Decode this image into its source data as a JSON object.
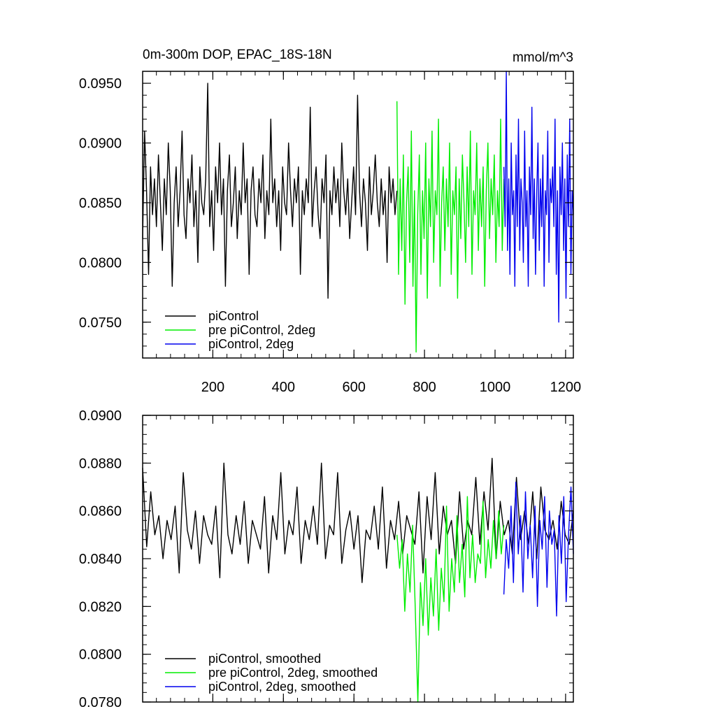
{
  "chart_data": [
    {
      "type": "line",
      "title": "0m-300m DOP, EPAC_18S-18N",
      "units": "mmol/m^3",
      "xlim": [
        1,
        1222
      ],
      "ylim": [
        0.072,
        0.096
      ],
      "xticks": [
        200,
        400,
        600,
        800,
        1000,
        1200
      ],
      "yticks": [
        0.075,
        0.08,
        0.085,
        0.09,
        0.095
      ],
      "ytick_labels": [
        "0.0750",
        "0.0800",
        "0.0850",
        "0.0900",
        "0.0950"
      ],
      "xtick_labels": [
        "200",
        "400",
        "600",
        "800",
        "1000",
        "1200"
      ],
      "grid": false,
      "legend_position": "bottom-left",
      "series": [
        {
          "name": "piControl",
          "color": "#000000",
          "x_start": 1,
          "x_end": 722,
          "values": [
            0.082,
            0.091,
            0.086,
            0.079,
            0.088,
            0.084,
            0.087,
            0.083,
            0.089,
            0.085,
            0.081,
            0.087,
            0.084,
            0.09,
            0.086,
            0.078,
            0.085,
            0.088,
            0.083,
            0.086,
            0.091,
            0.084,
            0.082,
            0.087,
            0.085,
            0.089,
            0.083,
            0.086,
            0.08,
            0.088,
            0.085,
            0.084,
            0.087,
            0.095,
            0.083,
            0.086,
            0.081,
            0.088,
            0.085,
            0.09,
            0.084,
            0.087,
            0.078,
            0.086,
            0.089,
            0.083,
            0.085,
            0.088,
            0.082,
            0.086,
            0.084,
            0.09,
            0.085,
            0.087,
            0.079,
            0.086,
            0.088,
            0.084,
            0.083,
            0.087,
            0.085,
            0.089,
            0.082,
            0.086,
            0.084,
            0.092,
            0.085,
            0.087,
            0.083,
            0.086,
            0.081,
            0.088,
            0.085,
            0.084,
            0.09,
            0.086,
            0.083,
            0.087,
            0.085,
            0.088,
            0.079,
            0.086,
            0.084,
            0.087,
            0.085,
            0.093,
            0.083,
            0.086,
            0.088,
            0.084,
            0.082,
            0.087,
            0.085,
            0.089,
            0.077,
            0.086,
            0.084,
            0.088,
            0.085,
            0.087,
            0.083,
            0.09,
            0.086,
            0.084,
            0.087,
            0.082,
            0.085,
            0.088,
            0.084,
            0.094,
            0.086,
            0.083,
            0.087,
            0.085,
            0.081,
            0.088,
            0.084,
            0.086,
            0.089,
            0.085,
            0.083,
            0.087,
            0.084,
            0.086,
            0.08,
            0.088,
            0.085,
            0.087,
            0.084,
            0.086
          ]
        },
        {
          "name": "pre piControl, 2deg",
          "color": "#00ee00",
          "x_start": 722,
          "x_end": 1025,
          "values": [
            0.0935,
            0.079,
            0.087,
            0.081,
            0.089,
            0.0765,
            0.085,
            0.088,
            0.08,
            0.091,
            0.078,
            0.086,
            0.0725,
            0.084,
            0.089,
            0.079,
            0.086,
            0.082,
            0.09,
            0.077,
            0.087,
            0.083,
            0.091,
            0.08,
            0.086,
            0.084,
            0.092,
            0.078,
            0.085,
            0.088,
            0.081,
            0.087,
            0.083,
            0.09,
            0.079,
            0.086,
            0.084,
            0.088,
            0.077,
            0.087,
            0.082,
            0.089,
            0.085,
            0.08,
            0.088,
            0.083,
            0.091,
            0.079,
            0.086,
            0.084,
            0.09,
            0.081,
            0.087,
            0.083,
            0.088,
            0.078,
            0.086,
            0.09,
            0.082,
            0.087,
            0.084,
            0.089,
            0.08,
            0.086,
            0.083,
            0.092,
            0.081,
            0.087
          ]
        },
        {
          "name": "piControl, 2deg",
          "color": "#0000ee",
          "x_start": 1025,
          "x_end": 1222,
          "values": [
            0.088,
            0.083,
            0.096,
            0.081,
            0.087,
            0.079,
            0.09,
            0.084,
            0.086,
            0.078,
            0.089,
            0.083,
            0.092,
            0.081,
            0.087,
            0.085,
            0.08,
            0.091,
            0.083,
            0.086,
            0.078,
            0.088,
            0.084,
            0.093,
            0.082,
            0.087,
            0.079,
            0.086,
            0.09,
            0.081,
            0.087,
            0.083,
            0.089,
            0.078,
            0.086,
            0.084,
            0.091,
            0.08,
            0.087,
            0.085,
            0.088,
            0.083,
            0.092,
            0.079,
            0.086,
            0.075,
            0.088,
            0.084,
            0.09,
            0.081,
            0.087,
            0.077,
            0.089,
            0.083,
            0.092,
            0.079,
            0.086,
            0.084
          ]
        }
      ]
    },
    {
      "type": "line",
      "xlim": [
        1,
        1222
      ],
      "ylim": [
        0.078,
        0.09
      ],
      "xticks": [
        200,
        400,
        600,
        800,
        1000,
        1200
      ],
      "yticks": [
        0.078,
        0.08,
        0.082,
        0.084,
        0.086,
        0.088,
        0.09
      ],
      "ytick_labels": [
        "0.0780",
        "0.0800",
        "0.0820",
        "0.0840",
        "0.0860",
        "0.0880",
        "0.0900"
      ],
      "grid": false,
      "legend_position": "bottom-left",
      "series": [
        {
          "name": "piControl, smoothed",
          "color": "#000000",
          "x_start": 1,
          "x_end": 1222,
          "values": [
            0.0878,
            0.0845,
            0.0868,
            0.085,
            0.0858,
            0.084,
            0.0856,
            0.0848,
            0.0862,
            0.0834,
            0.0876,
            0.0852,
            0.0844,
            0.086,
            0.0838,
            0.0858,
            0.085,
            0.0846,
            0.0862,
            0.0832,
            0.088,
            0.085,
            0.0842,
            0.0858,
            0.0846,
            0.0864,
            0.0838,
            0.0856,
            0.085,
            0.0844,
            0.0866,
            0.0834,
            0.0858,
            0.0848,
            0.0876,
            0.0842,
            0.0856,
            0.085,
            0.087,
            0.0838,
            0.0856,
            0.0848,
            0.0862,
            0.0846,
            0.088,
            0.084,
            0.0854,
            0.085,
            0.0876,
            0.0838,
            0.0852,
            0.086,
            0.0844,
            0.0858,
            0.083,
            0.0852,
            0.0848,
            0.0862,
            0.0844,
            0.087,
            0.0836,
            0.0856,
            0.0848,
            0.0864,
            0.0842,
            0.0858,
            0.0852,
            0.0846,
            0.0868,
            0.0834,
            0.0866,
            0.0848,
            0.0876,
            0.0842,
            0.0862,
            0.085,
            0.0856,
            0.0838,
            0.0868,
            0.0844,
            0.0856,
            0.085,
            0.0874,
            0.0846,
            0.0868,
            0.0852,
            0.0882,
            0.084,
            0.0864,
            0.085,
            0.0856,
            0.0842,
            0.0874,
            0.0848,
            0.086,
            0.0846,
            0.0868,
            0.084,
            0.087,
            0.0852,
            0.0848,
            0.0856,
            0.0844,
            0.0864,
            0.085,
            0.0846,
            0.086
          ]
        },
        {
          "name": "pre piControl, 2deg, smoothed",
          "color": "#00ee00",
          "x_start": 722,
          "x_end": 1025,
          "values": [
            0.085,
            0.0836,
            0.0848,
            0.0818,
            0.0842,
            0.0826,
            0.0854,
            0.082,
            0.078,
            0.083,
            0.0812,
            0.084,
            0.0808,
            0.0832,
            0.0816,
            0.0844,
            0.081,
            0.0836,
            0.0822,
            0.0862,
            0.0818,
            0.084,
            0.0826,
            0.0858,
            0.083,
            0.0846,
            0.0824,
            0.0866,
            0.0832,
            0.085,
            0.083,
            0.0842,
            0.0838,
            0.0864,
            0.0832,
            0.0848,
            0.0836,
            0.0856,
            0.084,
            0.086,
            0.0842,
            0.0854
          ]
        },
        {
          "name": "piControl, 2deg, smoothed",
          "color": "#0000ee",
          "x_start": 1025,
          "x_end": 1222,
          "values": [
            0.0825,
            0.0848,
            0.0836,
            0.0862,
            0.083,
            0.0872,
            0.0842,
            0.0858,
            0.0826,
            0.0868,
            0.084,
            0.0854,
            0.0832,
            0.0862,
            0.082,
            0.0856,
            0.0844,
            0.0866,
            0.0828,
            0.086,
            0.0846,
            0.0852,
            0.0816,
            0.0858,
            0.0838,
            0.0866,
            0.0822,
            0.085,
            0.087,
            0.0842
          ]
        }
      ]
    }
  ]
}
